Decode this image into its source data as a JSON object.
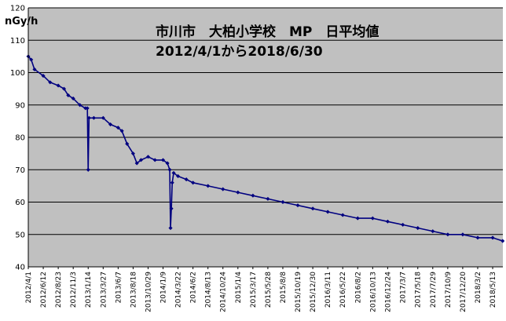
{
  "chart_data": {
    "type": "line",
    "title": "市川市　大柏小学校　MP　日平均値",
    "subtitle": "2012/4/1から2018/6/30",
    "ylabel": "nGy/h",
    "ylim": [
      40,
      120
    ],
    "yticks": [
      40,
      50,
      60,
      70,
      80,
      90,
      100,
      110,
      120
    ],
    "grid": true,
    "legend": "none",
    "colors": {
      "plot_bg": "#c0c0c0",
      "series": "#000080",
      "grid": "#000000",
      "page_bg": "#ffffff"
    },
    "x_tick_labels": [
      "2012/4/1",
      "2012/6/12",
      "2012/8/23",
      "2012/11/3",
      "2013/1/14",
      "2013/3/27",
      "2013/6/7",
      "2013/8/18",
      "2013/10/29",
      "2014/1/9",
      "2014/3/22",
      "2014/6/2",
      "2014/8/13",
      "2014/10/24",
      "2015/1/4",
      "2015/3/17",
      "2015/5/28",
      "2015/8/8",
      "2015/10/19",
      "2015/12/30",
      "2016/3/11",
      "2016/5/22",
      "2016/8/2",
      "2016/10/13",
      "2016/12/24",
      "2017/3/7",
      "2017/5/18",
      "2017/7/29",
      "2017/10/9",
      "2017/12/20",
      "2018/3/2",
      "2018/5/13"
    ],
    "series": [
      {
        "values": [
          {
            "x": "2012/4/1",
            "y": 105
          },
          {
            "x": "2012/4/15",
            "y": 104
          },
          {
            "x": "2012/5/1",
            "y": 101
          },
          {
            "x": "2012/6/12",
            "y": 99
          },
          {
            "x": "2012/7/15",
            "y": 97
          },
          {
            "x": "2012/8/23",
            "y": 96
          },
          {
            "x": "2012/9/20",
            "y": 95
          },
          {
            "x": "2012/10/10",
            "y": 93
          },
          {
            "x": "2012/11/3",
            "y": 92
          },
          {
            "x": "2012/12/5",
            "y": 90
          },
          {
            "x": "2013/1/1",
            "y": 89
          },
          {
            "x": "2013/1/10",
            "y": 89
          },
          {
            "x": "2013/1/14",
            "y": 70
          },
          {
            "x": "2013/1/18",
            "y": 86
          },
          {
            "x": "2013/2/10",
            "y": 86
          },
          {
            "x": "2013/3/27",
            "y": 86
          },
          {
            "x": "2013/5/1",
            "y": 84
          },
          {
            "x": "2013/6/7",
            "y": 83
          },
          {
            "x": "2013/6/25",
            "y": 82
          },
          {
            "x": "2013/7/20",
            "y": 78
          },
          {
            "x": "2013/8/18",
            "y": 75
          },
          {
            "x": "2013/9/5",
            "y": 72
          },
          {
            "x": "2013/9/25",
            "y": 73
          },
          {
            "x": "2013/10/29",
            "y": 74
          },
          {
            "x": "2013/12/1",
            "y": 73
          },
          {
            "x": "2014/1/9",
            "y": 73
          },
          {
            "x": "2014/1/30",
            "y": 72
          },
          {
            "x": "2014/2/10",
            "y": 70
          },
          {
            "x": "2014/2/14",
            "y": 52
          },
          {
            "x": "2014/2/18",
            "y": 58
          },
          {
            "x": "2014/2/22",
            "y": 66
          },
          {
            "x": "2014/3/1",
            "y": 69
          },
          {
            "x": "2014/3/22",
            "y": 68
          },
          {
            "x": "2014/5/1",
            "y": 67
          },
          {
            "x": "2014/6/2",
            "y": 66
          },
          {
            "x": "2014/8/13",
            "y": 65
          },
          {
            "x": "2014/10/24",
            "y": 64
          },
          {
            "x": "2015/1/4",
            "y": 63
          },
          {
            "x": "2015/3/17",
            "y": 62
          },
          {
            "x": "2015/5/28",
            "y": 61
          },
          {
            "x": "2015/8/8",
            "y": 60
          },
          {
            "x": "2015/10/19",
            "y": 59
          },
          {
            "x": "2015/12/30",
            "y": 58
          },
          {
            "x": "2016/3/11",
            "y": 57
          },
          {
            "x": "2016/5/22",
            "y": 56
          },
          {
            "x": "2016/8/2",
            "y": 55
          },
          {
            "x": "2016/10/13",
            "y": 55
          },
          {
            "x": "2016/12/24",
            "y": 54
          },
          {
            "x": "2017/3/7",
            "y": 53
          },
          {
            "x": "2017/5/18",
            "y": 52
          },
          {
            "x": "2017/7/29",
            "y": 51
          },
          {
            "x": "2017/10/9",
            "y": 50
          },
          {
            "x": "2017/12/20",
            "y": 50
          },
          {
            "x": "2018/3/2",
            "y": 49
          },
          {
            "x": "2018/5/13",
            "y": 49
          },
          {
            "x": "2018/6/30",
            "y": 48
          }
        ]
      }
    ]
  }
}
